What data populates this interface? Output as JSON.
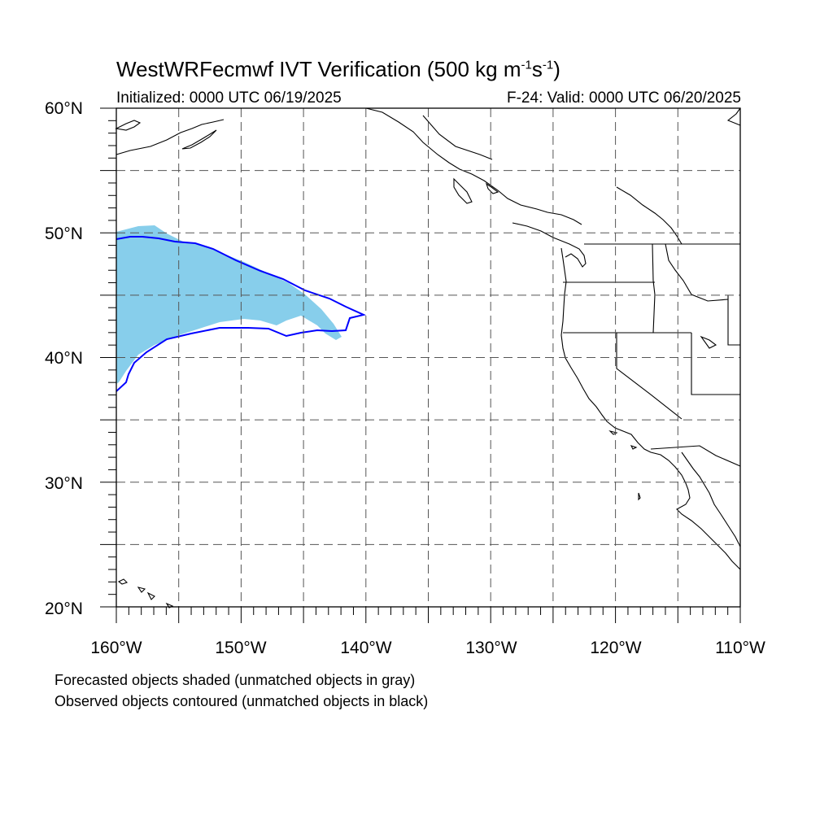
{
  "title": {
    "prefix": "WestWRFecmwf IVT Verification (500 kg m",
    "sup1": "-1",
    "mid": "s",
    "sup2": "-1",
    "suffix": ")"
  },
  "initialized": "Initialized: 0000 UTC 06/19/2025",
  "valid": "F-24: Valid: 0000 UTC 06/20/2025",
  "lat_labels": [
    "60°N",
    "50°N",
    "40°N",
    "30°N",
    "20°N"
  ],
  "lon_labels": [
    "160°W",
    "150°W",
    "140°W",
    "130°W",
    "120°W",
    "110°W"
  ],
  "notes": [
    "Forecasted objects shaded (unmatched objects in gray)",
    "Observed objects contoured (unmatched objects in black)"
  ],
  "colors": {
    "forecast_fill": "#87ceeb",
    "observed_contour": "#0000ff",
    "grid": "#555555",
    "coastline": "#000000"
  },
  "map_extent": {
    "lon": [
      -160,
      -110
    ],
    "lat": [
      20,
      60
    ]
  }
}
